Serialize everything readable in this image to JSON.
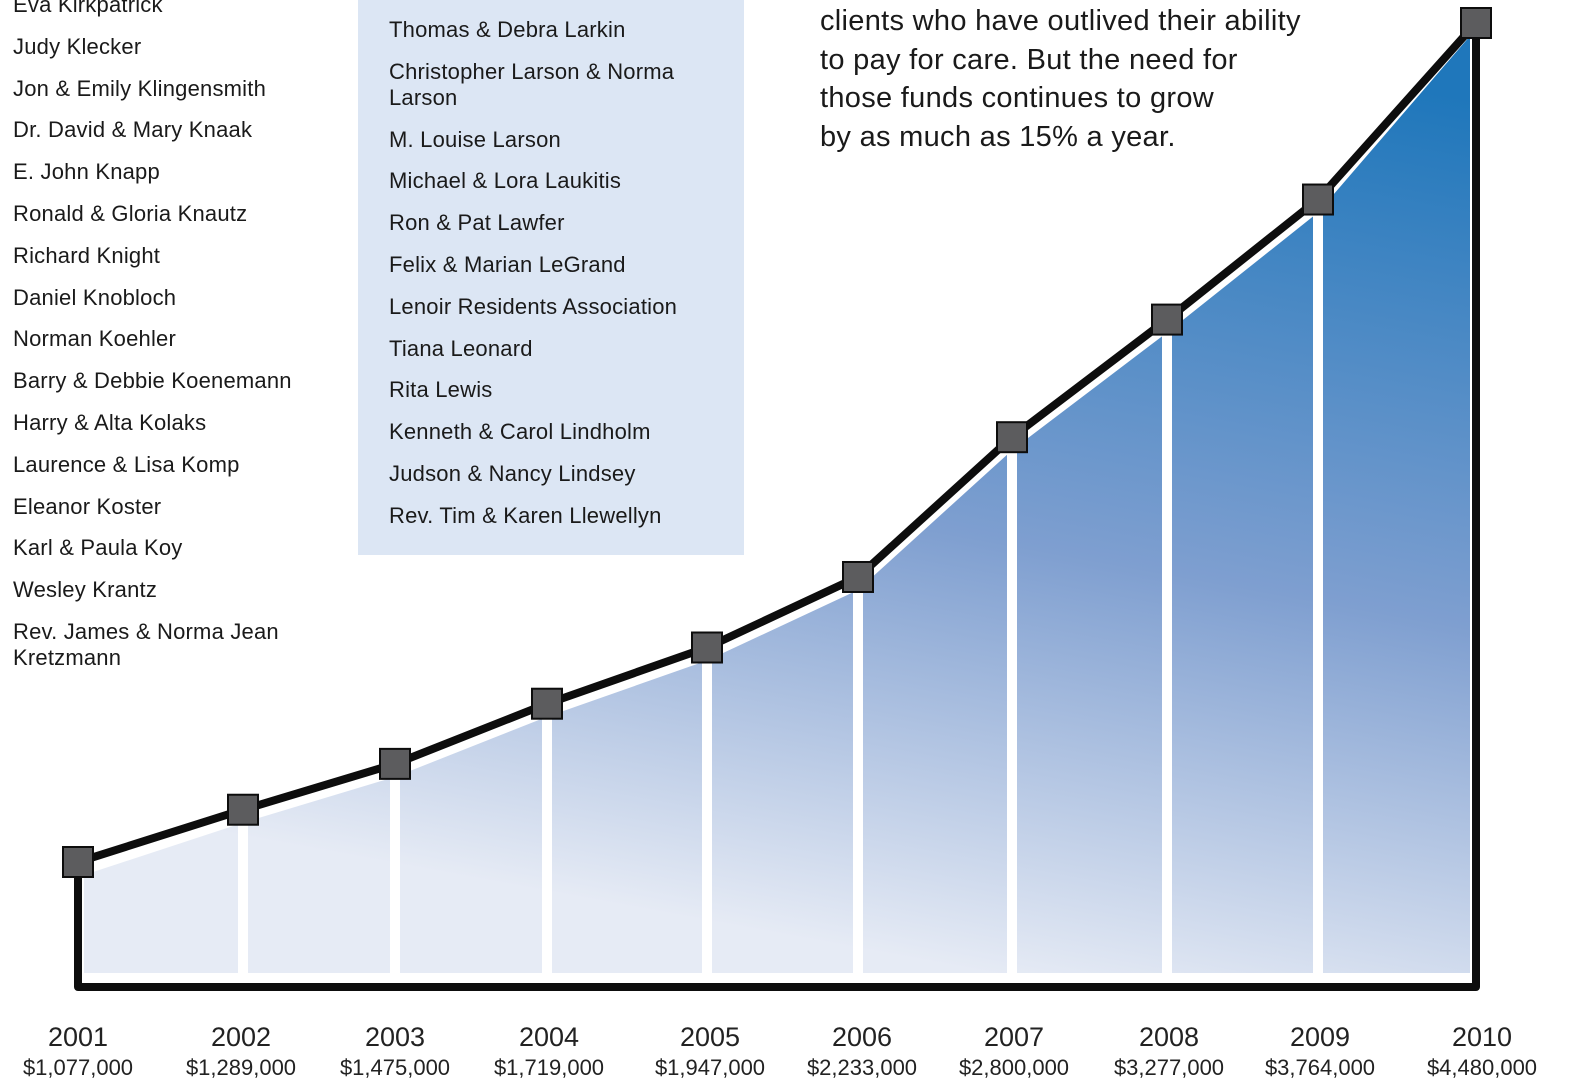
{
  "donors": {
    "left": [
      "Eva Kirkpatrick",
      "Judy Klecker",
      "Jon & Emily Klingensmith",
      "Dr. David & Mary Knaak",
      "E. John Knapp",
      "Ronald & Gloria Knautz",
      "Richard Knight",
      "Daniel Knobloch",
      "Norman Koehler",
      "Barry & Debbie Koenemann",
      "Harry & Alta Kolaks",
      "Laurence & Lisa Komp",
      "Eleanor Koster",
      "Karl & Paula Koy",
      "Wesley Krantz",
      "Rev. James & Norma Jean Kretzmann"
    ],
    "middle": [
      "Thomas & Debra Larkin",
      "Christopher Larson & Norma Larson",
      "M. Louise Larson",
      "Michael & Lora Laukitis",
      "Ron & Pat Lawfer",
      "Felix & Marian LeGrand",
      "Lenoir Residents Association",
      "Tiana Leonard",
      "Rita Lewis",
      "Kenneth & Carol Lindholm",
      "Judson & Nancy Lindsey",
      "Rev. Tim & Karen Llewellyn"
    ]
  },
  "intro_lines": [
    "clients who have outlived their ability",
    "to pay for care. But the need for",
    "those funds continues to grow",
    "by as much as 15% a year."
  ],
  "colors": {
    "area_top": "#1f77bb",
    "area_mid": "#7f9fd0",
    "area_bottom": "#e6ebf5",
    "line": "#0d0d0d",
    "marker": "#5c5c5e",
    "highlight_box": "#dce6f4"
  },
  "chart_data": {
    "type": "area",
    "x": [
      "2001",
      "2002",
      "2003",
      "2004",
      "2005",
      "2006",
      "2007",
      "2008",
      "2009",
      "2010"
    ],
    "values": [
      1077000,
      1289000,
      1475000,
      1719000,
      1947000,
      2233000,
      2800000,
      3277000,
      3764000,
      4480000
    ],
    "value_labels": [
      "$1,077,000",
      "$1,289,000",
      "$1,475,000",
      "$1,719,000",
      "$1,947,000",
      "$2,233,000",
      "$2,800,000",
      "$3,277,000",
      "$3,764,000",
      "$4,480,000"
    ],
    "markers": "square",
    "grid": false
  }
}
